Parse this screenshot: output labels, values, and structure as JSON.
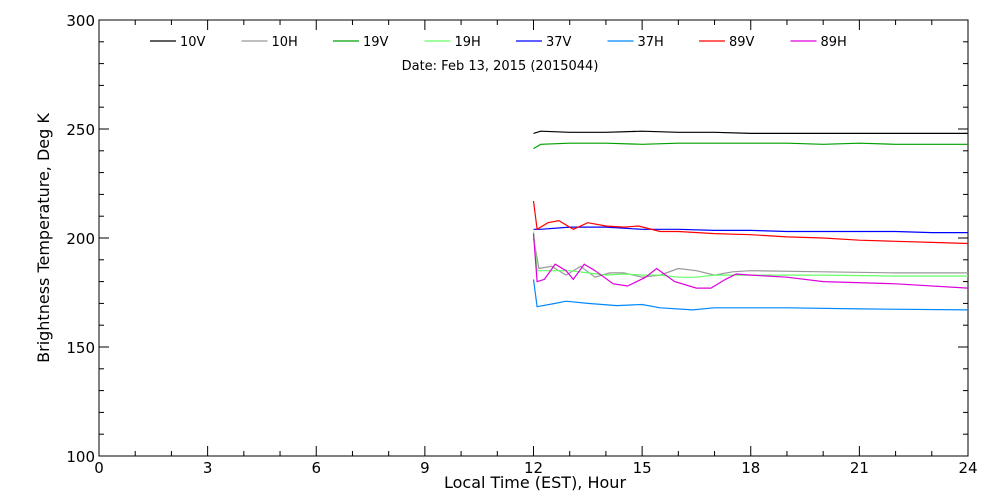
{
  "chart_data": {
    "type": "line",
    "title": "Date: Feb 13, 2015 (2015044)",
    "xlabel": "Local Time (EST), Hour",
    "ylabel": "Brightness Temperature, Deg K",
    "xlim": [
      0,
      24
    ],
    "ylim": [
      100,
      300
    ],
    "xticks": [
      0,
      3,
      6,
      9,
      12,
      15,
      18,
      21,
      24
    ],
    "yticks": [
      100,
      150,
      200,
      250,
      300
    ],
    "grid": false,
    "legend_placement": "top",
    "series": [
      {
        "name": "10V",
        "color": "#000000",
        "x": [
          12,
          12.2,
          13,
          14,
          15,
          16,
          17,
          18,
          19,
          20,
          21,
          22,
          23,
          24
        ],
        "y": [
          248,
          249,
          248.5,
          248.5,
          249,
          248.5,
          248.5,
          248,
          248,
          248,
          248,
          248,
          248,
          248
        ]
      },
      {
        "name": "10H",
        "color": "#999999",
        "x": [
          12,
          12.15,
          12.5,
          12.9,
          13.3,
          13.7,
          14.1,
          14.5,
          15,
          15.5,
          16,
          16.5,
          17,
          17.5,
          18,
          20,
          22,
          24
        ],
        "y": [
          200,
          186,
          187,
          183,
          187,
          182,
          184,
          184,
          182,
          183,
          186,
          185,
          183,
          184.5,
          185,
          184.5,
          184,
          184
        ]
      },
      {
        "name": "19V",
        "color": "#00a000",
        "x": [
          12,
          12.2,
          13,
          14,
          15,
          16,
          17,
          18,
          19,
          20,
          21,
          22,
          23,
          24
        ],
        "y": [
          241,
          243,
          243.5,
          243.5,
          243,
          243.5,
          243.5,
          243.5,
          243.5,
          243,
          243.5,
          243,
          243,
          243
        ]
      },
      {
        "name": "19H",
        "color": "#66ff66",
        "x": [
          12,
          12.1,
          12.5,
          13,
          13.5,
          14,
          14.5,
          15,
          15.5,
          16,
          16.5,
          17,
          17.5,
          18,
          20,
          22,
          24
        ],
        "y": [
          203,
          185,
          185,
          185,
          184,
          183,
          183.5,
          183,
          183,
          182,
          182,
          183,
          183,
          183,
          183,
          182.5,
          182.5
        ]
      },
      {
        "name": "37V",
        "color": "#0000ff",
        "x": [
          12,
          12.2,
          13,
          13.5,
          14,
          15,
          16,
          17,
          18,
          19,
          20,
          21,
          22,
          23,
          24
        ],
        "y": [
          204,
          204,
          205,
          205,
          205,
          204,
          204,
          203.5,
          203.5,
          203,
          203,
          203,
          203,
          202.5,
          202.5
        ]
      },
      {
        "name": "37H",
        "color": "#0088ff",
        "x": [
          12,
          12.1,
          12.6,
          12.9,
          13.5,
          14.3,
          15,
          15.5,
          16.4,
          17,
          19,
          21,
          24
        ],
        "y": [
          181,
          168.5,
          170,
          171,
          170,
          169,
          169.5,
          168,
          167,
          168,
          168,
          167.5,
          167
        ]
      },
      {
        "name": "89V",
        "color": "#ff0000",
        "x": [
          12,
          12.1,
          12.4,
          12.7,
          13.1,
          13.5,
          14,
          14.5,
          14.9,
          15.5,
          16,
          17,
          18,
          19,
          20,
          21,
          22,
          23,
          24
        ],
        "y": [
          217,
          204,
          207,
          208,
          204,
          207,
          205.5,
          205,
          205.5,
          203,
          203,
          202,
          201.5,
          200.5,
          200,
          199,
          198.5,
          198,
          197.5
        ]
      },
      {
        "name": "89H",
        "color": "#dd00dd",
        "x": [
          12,
          12.1,
          12.3,
          12.6,
          12.9,
          13.1,
          13.4,
          13.7,
          14.2,
          14.6,
          15.1,
          15.4,
          15.9,
          16.5,
          16.9,
          17.3,
          17.6,
          18,
          19,
          20,
          22,
          24
        ],
        "y": [
          202,
          180,
          181,
          188,
          185,
          181,
          188,
          185,
          179,
          178,
          182,
          186,
          180,
          177,
          177,
          181,
          183.5,
          183,
          182,
          180,
          179,
          177
        ]
      }
    ]
  }
}
